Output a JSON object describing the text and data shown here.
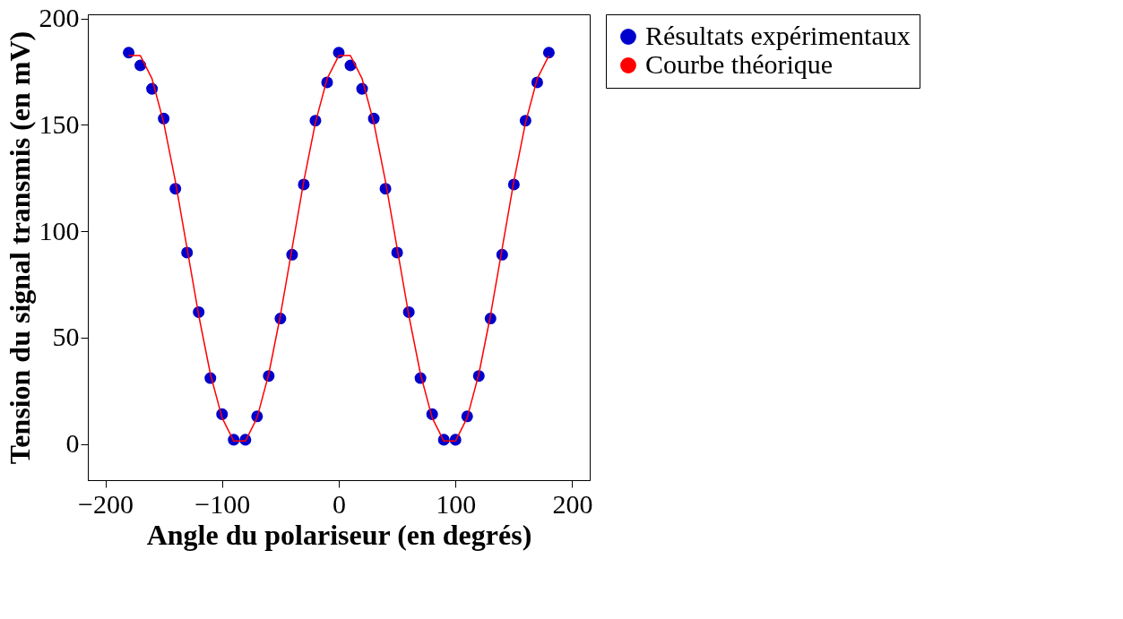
{
  "chart_data": {
    "type": "scatter",
    "xlabel": "Angle du polariseur (en degrés)",
    "ylabel": "Tension du signal transmis (en mV)",
    "xlim": [
      -215,
      215
    ],
    "ylim": [
      -17,
      202
    ],
    "xticks": [
      -200,
      -100,
      0,
      100,
      200
    ],
    "yticks": [
      0,
      50,
      100,
      150,
      200
    ],
    "grid": false,
    "legend": "right",
    "series": [
      {
        "name": "Résultats expérimentaux",
        "marker": "circle",
        "color": "#0000cc",
        "x": [
          -180,
          -170,
          -160,
          -150,
          -140,
          -130,
          -120,
          -110,
          -100,
          -90,
          -80,
          -70,
          -60,
          -50,
          -40,
          -30,
          -20,
          -10,
          0,
          10,
          20,
          30,
          40,
          50,
          60,
          70,
          80,
          90,
          100,
          110,
          120,
          130,
          140,
          150,
          160,
          170,
          180
        ],
        "values": [
          184,
          178,
          167,
          153,
          120,
          90,
          62,
          31,
          14,
          2,
          2,
          13,
          32,
          59,
          89,
          122,
          152,
          170,
          184,
          178,
          167,
          153,
          120,
          90,
          62,
          31,
          14,
          2,
          2,
          13,
          32,
          59,
          89,
          122,
          152,
          170,
          184
        ]
      },
      {
        "name": "Courbe théorique",
        "type": "line",
        "color": "#ff0000",
        "line_style": "solid",
        "x": [
          -180,
          -170,
          -160,
          -150,
          -140,
          -130,
          -120,
          -110,
          -100,
          -90,
          -80,
          -70,
          -60,
          -50,
          -40,
          -30,
          -20,
          -10,
          0,
          10,
          20,
          30,
          40,
          50,
          60,
          70,
          80,
          90,
          100,
          110,
          120,
          130,
          140,
          150,
          160,
          170,
          180
        ],
        "values": [
          182.6,
          182.6,
          171.7,
          151.1,
          123.5,
          92,
          60.5,
          32.9,
          12.3,
          1.4,
          1.4,
          12.3,
          32.9,
          60.5,
          92,
          123.5,
          151.1,
          171.7,
          182.6,
          182.6,
          171.7,
          151.1,
          123.5,
          92,
          60.5,
          32.9,
          12.3,
          1.4,
          1.4,
          12.3,
          32.9,
          60.5,
          92,
          123.5,
          151.1,
          171.7,
          182.6
        ]
      }
    ]
  }
}
